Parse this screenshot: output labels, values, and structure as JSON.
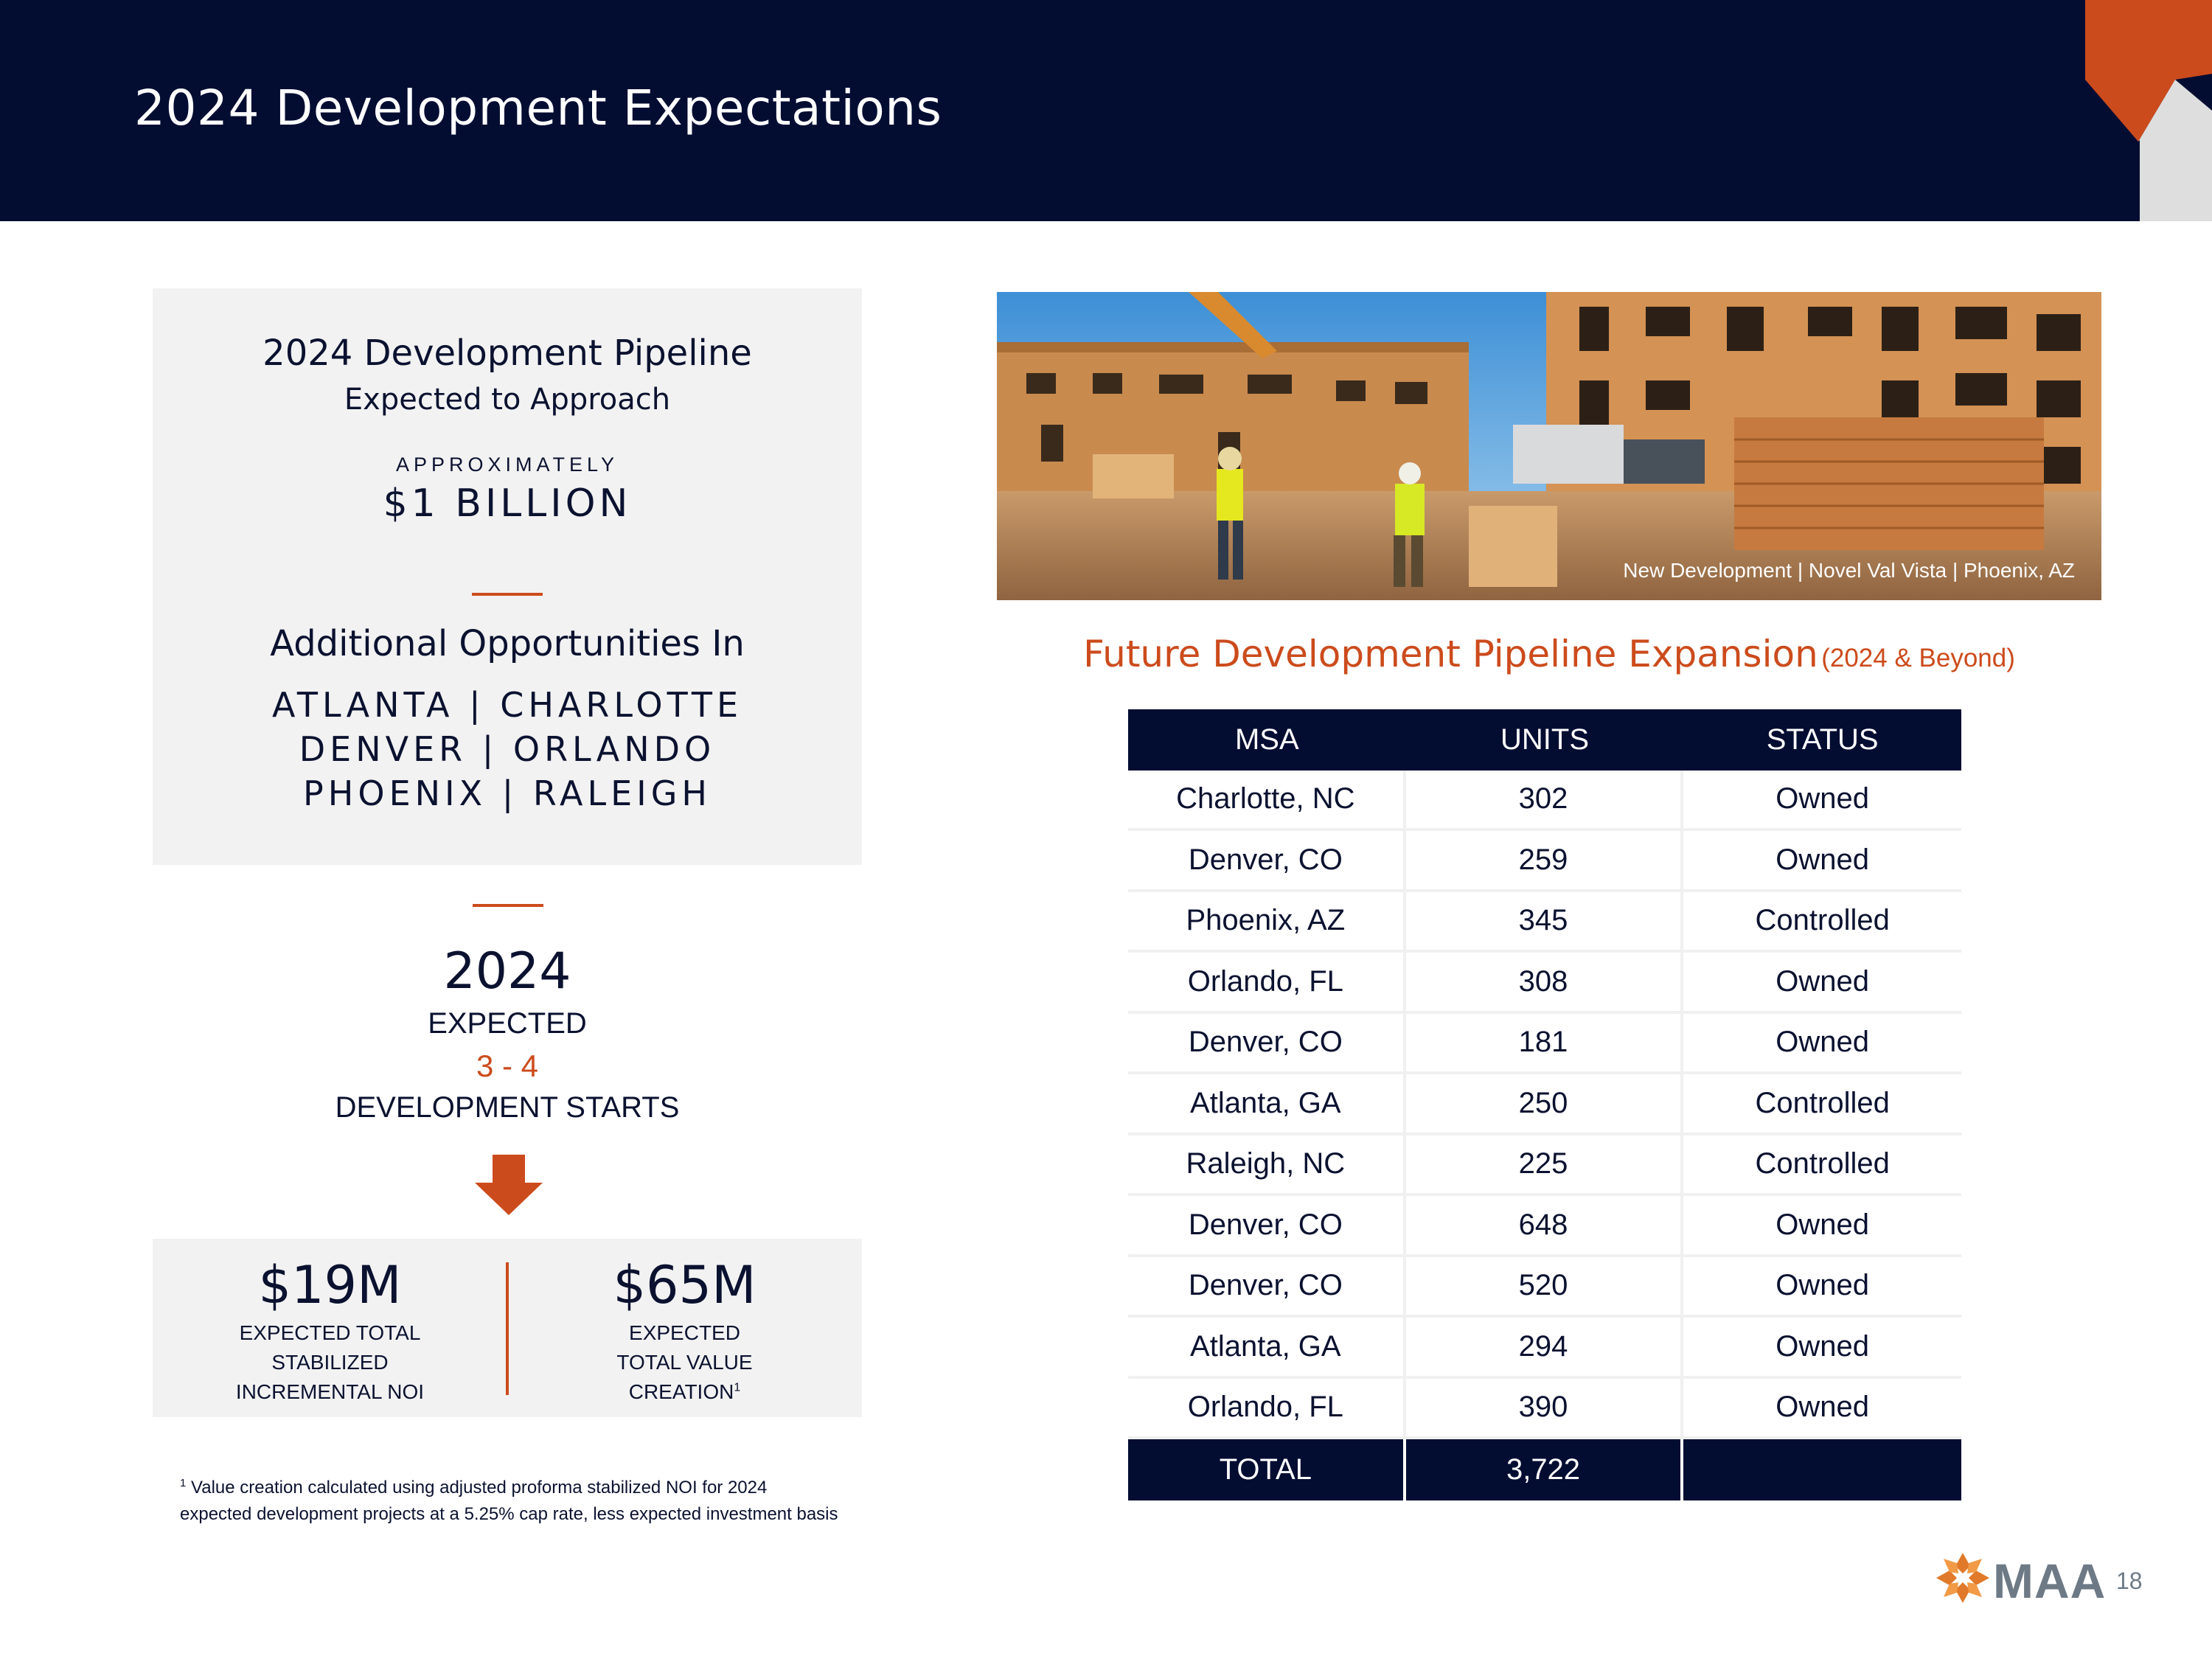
{
  "header": {
    "title": "2024 Development Expectations",
    "colors": {
      "navy": "#030d32",
      "orange": "#cc4b1c",
      "light_gray": "#dedede"
    }
  },
  "pipeline": {
    "title": "2024 Development Pipeline",
    "subtitle": "Expected to Approach",
    "approx_label": "APPROXIMATELY",
    "amount": "$1 BILLION",
    "additional_title": "Additional Opportunities In",
    "cities_line1": "ATLANTA | CHARLOTTE",
    "cities_line2": "DENVER | ORLANDO",
    "cities_line3": "PHOENIX | RALEIGH"
  },
  "starts": {
    "year": "2024",
    "expected": "EXPECTED",
    "count": "3 - 4",
    "label": "DEVELOPMENT STARTS",
    "arrow_icon": "down-arrow-icon"
  },
  "value": {
    "noi_amount": "$19M",
    "noi_line1": "EXPECTED TOTAL",
    "noi_line2": "STABILIZED",
    "noi_line3": "INCREMENTAL NOI",
    "creation_amount": "$65M",
    "creation_line1": "EXPECTED",
    "creation_line2": "TOTAL VALUE",
    "creation_line3": "CREATION",
    "creation_sup": "1"
  },
  "footnote": {
    "marker": "1",
    "text": " Value creation calculated using adjusted proforma stabilized NOI for 2024 expected development projects at a 5.25% cap rate, less expected investment basis"
  },
  "photo": {
    "caption": "New Development | Novel Val Vista | Phoenix, AZ"
  },
  "table": {
    "title": "Future Development Pipeline Expansion",
    "title_suffix": "(2024 & Beyond)",
    "columns": [
      "MSA",
      "UNITS",
      "STATUS"
    ],
    "rows": [
      [
        "Charlotte, NC",
        "302",
        "Owned"
      ],
      [
        "Denver, CO",
        "259",
        "Owned"
      ],
      [
        "Phoenix, AZ",
        "345",
        "Controlled"
      ],
      [
        "Orlando, FL",
        "308",
        "Owned"
      ],
      [
        "Denver, CO",
        "181",
        "Owned"
      ],
      [
        "Atlanta, GA",
        "250",
        "Controlled"
      ],
      [
        "Raleigh, NC",
        "225",
        "Controlled"
      ],
      [
        "Denver, CO",
        "648",
        "Owned"
      ],
      [
        "Denver, CO",
        "520",
        "Owned"
      ],
      [
        "Atlanta, GA",
        "294",
        "Owned"
      ],
      [
        "Orlando, FL",
        "390",
        "Owned"
      ]
    ],
    "total": [
      "TOTAL",
      "3,722",
      ""
    ]
  },
  "footer": {
    "logo_text": "MAA",
    "page_number": "18"
  }
}
